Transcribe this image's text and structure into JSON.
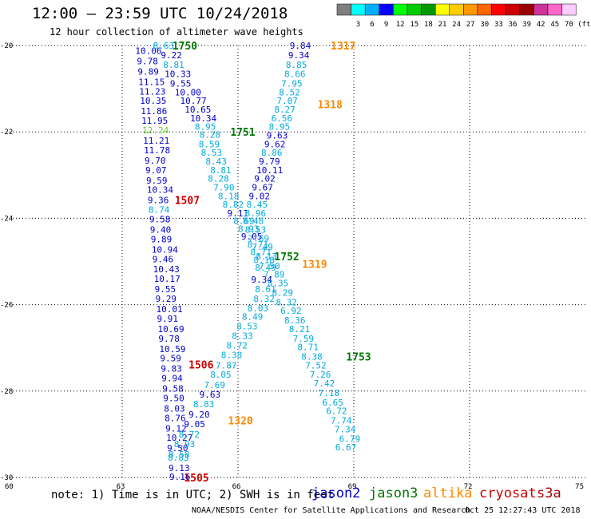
{
  "header": {
    "title": "12:00 — 23:59 UTC 10/24/2018",
    "subtitle": "12 hour collection of altimeter wave heights"
  },
  "color_scale": {
    "unit": "(ft)",
    "bins": [
      {
        "label": "",
        "color": "#7f7f7f"
      },
      {
        "label": "3",
        "color": "#00ffff"
      },
      {
        "label": "6",
        "color": "#00b0ff"
      },
      {
        "label": "9",
        "color": "#0000ff"
      },
      {
        "label": "12",
        "color": "#00ff00"
      },
      {
        "label": "15",
        "color": "#00cc00"
      },
      {
        "label": "18",
        "color": "#009900"
      },
      {
        "label": "21",
        "color": "#ffff00"
      },
      {
        "label": "24",
        "color": "#ffcc00"
      },
      {
        "label": "27",
        "color": "#ff9900"
      },
      {
        "label": "30",
        "color": "#ff6600"
      },
      {
        "label": "33",
        "color": "#ff0000"
      },
      {
        "label": "36",
        "color": "#cc0000"
      },
      {
        "label": "39",
        "color": "#990000"
      },
      {
        "label": "42",
        "color": "#cc3399"
      },
      {
        "label": "45",
        "color": "#ff66cc"
      },
      {
        "label": "70",
        "color": "#ffccff"
      }
    ]
  },
  "map": {
    "lon_ticks": [
      {
        "label": "60",
        "value": 60
      },
      {
        "label": "63",
        "value": 63
      },
      {
        "label": "66",
        "value": 66
      },
      {
        "label": "69",
        "value": 69
      },
      {
        "label": "72",
        "value": 72
      },
      {
        "label": "75",
        "value": 75
      }
    ],
    "lat_ticks": [
      {
        "label": "-20",
        "value": -20
      },
      {
        "label": "-22",
        "value": -22
      },
      {
        "label": "-24",
        "value": -24
      },
      {
        "label": "-26",
        "value": -26
      },
      {
        "label": "-28",
        "value": -28
      },
      {
        "label": "-30",
        "value": -30
      }
    ],
    "lon_range": [
      60,
      75
    ],
    "lat_range": [
      -20,
      -30
    ]
  },
  "satellites": {
    "jason2": {
      "label": "jason2",
      "color": "#0000cc"
    },
    "jason3": {
      "label": "jason3",
      "color": "#007700"
    },
    "altika": {
      "label": "altika",
      "color": "#ff8800"
    },
    "cryosat": {
      "label": "cryosat",
      "color": "#cc0000"
    },
    "s3a": {
      "label": "s3a",
      "color": "#aa0000"
    }
  },
  "observations": [
    {
      "t": "10.06",
      "lon": 63.34,
      "lat": -20.12,
      "c": "#0000cc"
    },
    {
      "t": "9.78",
      "lon": 63.38,
      "lat": -20.36,
      "c": "#0000cc"
    },
    {
      "t": "9.89",
      "lon": 63.4,
      "lat": -20.6,
      "c": "#0000cc"
    },
    {
      "t": "11.15",
      "lon": 63.42,
      "lat": -20.84,
      "c": "#0000cc"
    },
    {
      "t": "11.23",
      "lon": 63.44,
      "lat": -21.06,
      "c": "#0000cc"
    },
    {
      "t": "10.35",
      "lon": 63.46,
      "lat": -21.28,
      "c": "#0000cc"
    },
    {
      "t": "11.86",
      "lon": 63.48,
      "lat": -21.52,
      "c": "#0000cc"
    },
    {
      "t": "11.95",
      "lon": 63.5,
      "lat": -21.74,
      "c": "#0000cc"
    },
    {
      "t": "12.24",
      "lon": 63.52,
      "lat": -21.96,
      "c": "#66cc33"
    },
    {
      "t": "11.21",
      "lon": 63.54,
      "lat": -22.2,
      "c": "#0000cc"
    },
    {
      "t": "11.78",
      "lon": 63.56,
      "lat": -22.42,
      "c": "#0000cc"
    },
    {
      "t": "9.70",
      "lon": 63.58,
      "lat": -22.66,
      "c": "#0000cc"
    },
    {
      "t": "9.07",
      "lon": 63.6,
      "lat": -22.88,
      "c": "#0000cc"
    },
    {
      "t": "9.59",
      "lon": 63.62,
      "lat": -23.12,
      "c": "#0000cc"
    },
    {
      "t": "10.34",
      "lon": 63.64,
      "lat": -23.34,
      "c": "#0000cc"
    },
    {
      "t": "9.36",
      "lon": 63.66,
      "lat": -23.58,
      "c": "#0000cc"
    },
    {
      "t": "8.74",
      "lon": 63.68,
      "lat": -23.8,
      "c": "#00aadd"
    },
    {
      "t": "9.58",
      "lon": 63.7,
      "lat": -24.02,
      "c": "#0000cc"
    },
    {
      "t": "9.40",
      "lon": 63.72,
      "lat": -24.26,
      "c": "#0000cc"
    },
    {
      "t": "9.89",
      "lon": 63.74,
      "lat": -24.48,
      "c": "#0000cc"
    },
    {
      "t": "10.94",
      "lon": 63.76,
      "lat": -24.72,
      "c": "#0000cc"
    },
    {
      "t": "9.46",
      "lon": 63.78,
      "lat": -24.94,
      "c": "#0000cc"
    },
    {
      "t": "10.43",
      "lon": 63.8,
      "lat": -25.18,
      "c": "#0000cc"
    },
    {
      "t": "10.17",
      "lon": 63.82,
      "lat": -25.4,
      "c": "#0000cc"
    },
    {
      "t": "9.55",
      "lon": 63.84,
      "lat": -25.64,
      "c": "#0000cc"
    },
    {
      "t": "9.29",
      "lon": 63.86,
      "lat": -25.86,
      "c": "#0000cc"
    },
    {
      "t": "10.01",
      "lon": 63.88,
      "lat": -26.1,
      "c": "#0000cc"
    },
    {
      "t": "9.91",
      "lon": 63.9,
      "lat": -26.32,
      "c": "#0000cc"
    },
    {
      "t": "10.69",
      "lon": 63.92,
      "lat": -26.56,
      "c": "#0000cc"
    },
    {
      "t": "9.78",
      "lon": 63.94,
      "lat": -26.78,
      "c": "#0000cc"
    },
    {
      "t": "10.59",
      "lon": 63.96,
      "lat": -27.02,
      "c": "#0000cc"
    },
    {
      "t": "9.59",
      "lon": 63.98,
      "lat": -27.24,
      "c": "#0000cc"
    },
    {
      "t": "9.83",
      "lon": 64.0,
      "lat": -27.48,
      "c": "#0000cc"
    },
    {
      "t": "9.94",
      "lon": 64.02,
      "lat": -27.7,
      "c": "#0000cc"
    },
    {
      "t": "9.58",
      "lon": 64.04,
      "lat": -27.94,
      "c": "#0000cc"
    },
    {
      "t": "9.50",
      "lon": 64.06,
      "lat": -28.16,
      "c": "#0000cc"
    },
    {
      "t": "8.03",
      "lon": 64.08,
      "lat": -28.4,
      "c": "#0000cc"
    },
    {
      "t": "8.76",
      "lon": 64.1,
      "lat": -28.62,
      "c": "#0000cc"
    },
    {
      "t": "9.12",
      "lon": 64.12,
      "lat": -28.86,
      "c": "#0000cc"
    },
    {
      "t": "10.27",
      "lon": 64.14,
      "lat": -29.08,
      "c": "#0000cc"
    },
    {
      "t": "9.50",
      "lon": 64.16,
      "lat": -29.32,
      "c": "#0000cc"
    },
    {
      "t": "8.83",
      "lon": 64.18,
      "lat": -29.54,
      "c": "#00aadd"
    },
    {
      "t": "9.13",
      "lon": 64.2,
      "lat": -29.78,
      "c": "#0000cc"
    },
    {
      "t": "9.16",
      "lon": 64.22,
      "lat": -29.98,
      "c": "#0000cc"
    },
    {
      "t": "8.63",
      "lon": 63.8,
      "lat": -20.0,
      "c": "#00aadd"
    },
    {
      "t": "9.22",
      "lon": 64.0,
      "lat": -20.22,
      "c": "#0000cc"
    },
    {
      "t": "8.81",
      "lon": 64.06,
      "lat": -20.44,
      "c": "#00aadd"
    },
    {
      "t": "10.33",
      "lon": 64.1,
      "lat": -20.66,
      "c": "#0000cc"
    },
    {
      "t": "9.55",
      "lon": 64.24,
      "lat": -20.88,
      "c": "#0000cc"
    },
    {
      "t": "10.00",
      "lon": 64.36,
      "lat": -21.08,
      "c": "#0000cc"
    },
    {
      "t": "10.77",
      "lon": 64.5,
      "lat": -21.28,
      "c": "#0000cc"
    },
    {
      "t": "10.65",
      "lon": 64.62,
      "lat": -21.48,
      "c": "#0000cc"
    },
    {
      "t": "10.34",
      "lon": 64.76,
      "lat": -21.68,
      "c": "#0000cc"
    },
    {
      "t": "8.95",
      "lon": 64.88,
      "lat": -21.88,
      "c": "#00aadd"
    },
    {
      "t": "8.28",
      "lon": 65.0,
      "lat": -22.06,
      "c": "#00aadd"
    },
    {
      "t": "8.59",
      "lon": 64.98,
      "lat": -22.28,
      "c": "#00aadd"
    },
    {
      "t": "8.53",
      "lon": 65.04,
      "lat": -22.48,
      "c": "#00aadd"
    },
    {
      "t": "8.43",
      "lon": 65.16,
      "lat": -22.68,
      "c": "#00aadd"
    },
    {
      "t": "8.81",
      "lon": 65.28,
      "lat": -22.88,
      "c": "#00aadd"
    },
    {
      "t": "8.28",
      "lon": 65.22,
      "lat": -23.08,
      "c": "#00aadd"
    },
    {
      "t": "7.90",
      "lon": 65.36,
      "lat": -23.28,
      "c": "#00aadd"
    },
    {
      "t": "8.18",
      "lon": 65.48,
      "lat": -23.48,
      "c": "#00aadd"
    },
    {
      "t": "8.82",
      "lon": 65.6,
      "lat": -23.68,
      "c": "#00aadd"
    },
    {
      "t": "9.11",
      "lon": 65.72,
      "lat": -23.88,
      "c": "#0000cc"
    },
    {
      "t": "8.69",
      "lon": 65.88,
      "lat": -24.06,
      "c": "#00aadd"
    },
    {
      "t": "8.93",
      "lon": 66.0,
      "lat": -24.24,
      "c": "#00aadd"
    },
    {
      "t": "9.05",
      "lon": 66.08,
      "lat": -24.42,
      "c": "#0000cc"
    },
    {
      "t": "8.71",
      "lon": 66.24,
      "lat": -24.6,
      "c": "#00aadd"
    },
    {
      "t": "8.71",
      "lon": 66.32,
      "lat": -24.78,
      "c": "#00aadd"
    },
    {
      "t": "8.18",
      "lon": 66.4,
      "lat": -24.96,
      "c": "#00aadd"
    },
    {
      "t": "8.49",
      "lon": 66.44,
      "lat": -25.14,
      "c": "#00aadd"
    },
    {
      "t": "9.34",
      "lon": 66.34,
      "lat": -25.42,
      "c": "#0000cc"
    },
    {
      "t": "8.61",
      "lon": 66.44,
      "lat": -25.64,
      "c": "#00aadd"
    },
    {
      "t": "8.32",
      "lon": 66.4,
      "lat": -25.86,
      "c": "#00aadd"
    },
    {
      "t": "8.03",
      "lon": 66.24,
      "lat": -26.08,
      "c": "#00aadd"
    },
    {
      "t": "8.49",
      "lon": 66.1,
      "lat": -26.28,
      "c": "#00aadd"
    },
    {
      "t": "8.53",
      "lon": 65.96,
      "lat": -26.5,
      "c": "#00aadd"
    },
    {
      "t": "8.33",
      "lon": 65.84,
      "lat": -26.72,
      "c": "#00aadd"
    },
    {
      "t": "8.72",
      "lon": 65.7,
      "lat": -26.94,
      "c": "#00aadd"
    },
    {
      "t": "8.38",
      "lon": 65.56,
      "lat": -27.16,
      "c": "#00aadd"
    },
    {
      "t": "7.87",
      "lon": 65.42,
      "lat": -27.4,
      "c": "#00aadd"
    },
    {
      "t": "8.05",
      "lon": 65.28,
      "lat": -27.62,
      "c": "#00aadd"
    },
    {
      "t": "7.69",
      "lon": 65.12,
      "lat": -27.86,
      "c": "#00aadd"
    },
    {
      "t": "9.63",
      "lon": 65.0,
      "lat": -28.08,
      "c": "#0000cc"
    },
    {
      "t": "8.83",
      "lon": 64.84,
      "lat": -28.3,
      "c": "#00aadd"
    },
    {
      "t": "9.20",
      "lon": 64.72,
      "lat": -28.54,
      "c": "#0000cc"
    },
    {
      "t": "9.05",
      "lon": 64.6,
      "lat": -28.76,
      "c": "#0000cc"
    },
    {
      "t": "8.72",
      "lon": 64.46,
      "lat": -29.0,
      "c": "#00aadd"
    },
    {
      "t": "8.93",
      "lon": 64.34,
      "lat": -29.22,
      "c": "#00aadd"
    },
    {
      "t": "8.58",
      "lon": 64.2,
      "lat": -29.46,
      "c": "#00aadd"
    },
    {
      "t": "9.84",
      "lon": 67.34,
      "lat": -20.0,
      "c": "#0000cc"
    },
    {
      "t": "9.34",
      "lon": 67.3,
      "lat": -20.22,
      "c": "#0000cc"
    },
    {
      "t": "8.85",
      "lon": 67.24,
      "lat": -20.44,
      "c": "#00aadd"
    },
    {
      "t": "8.66",
      "lon": 67.2,
      "lat": -20.66,
      "c": "#00aadd"
    },
    {
      "t": "7.95",
      "lon": 67.12,
      "lat": -20.88,
      "c": "#00aadd"
    },
    {
      "t": "8.52",
      "lon": 67.06,
      "lat": -21.08,
      "c": "#00aadd"
    },
    {
      "t": "7.07",
      "lon": 67.0,
      "lat": -21.28,
      "c": "#00aadd"
    },
    {
      "t": "8.27",
      "lon": 66.94,
      "lat": -21.48,
      "c": "#00aadd"
    },
    {
      "t": "6.56",
      "lon": 66.86,
      "lat": -21.68,
      "c": "#00aadd"
    },
    {
      "t": "8.95",
      "lon": 66.8,
      "lat": -21.88,
      "c": "#00aadd"
    },
    {
      "t": "9.63",
      "lon": 66.74,
      "lat": -22.08,
      "c": "#0000cc"
    },
    {
      "t": "9.62",
      "lon": 66.68,
      "lat": -22.28,
      "c": "#0000cc"
    },
    {
      "t": "8.86",
      "lon": 66.6,
      "lat": -22.48,
      "c": "#00aadd"
    },
    {
      "t": "9.79",
      "lon": 66.54,
      "lat": -22.68,
      "c": "#0000cc"
    },
    {
      "t": "10.11",
      "lon": 66.48,
      "lat": -22.88,
      "c": "#0000cc"
    },
    {
      "t": "9.02",
      "lon": 66.42,
      "lat": -23.08,
      "c": "#0000cc"
    },
    {
      "t": "9.67",
      "lon": 66.36,
      "lat": -23.28,
      "c": "#0000cc"
    },
    {
      "t": "9.02",
      "lon": 66.28,
      "lat": -23.48,
      "c": "#0000cc"
    },
    {
      "t": "8.45",
      "lon": 66.22,
      "lat": -23.68,
      "c": "#00aadd"
    },
    {
      "t": "8.96",
      "lon": 66.18,
      "lat": -23.88,
      "c": "#00aadd"
    },
    {
      "t": "8.48",
      "lon": 66.12,
      "lat": -24.06,
      "c": "#00aadd"
    },
    {
      "t": "8.53",
      "lon": 66.18,
      "lat": -24.26,
      "c": "#00aadd"
    },
    {
      "t": "7.69",
      "lon": 66.26,
      "lat": -24.46,
      "c": "#00aadd"
    },
    {
      "t": "7.49",
      "lon": 66.36,
      "lat": -24.66,
      "c": "#00aadd"
    },
    {
      "t": "8.13",
      "lon": 66.46,
      "lat": -24.88,
      "c": "#00aadd"
    },
    {
      "t": "7.50",
      "lon": 66.54,
      "lat": -25.1,
      "c": "#00aadd"
    },
    {
      "t": "7.89",
      "lon": 66.66,
      "lat": -25.3,
      "c": "#00aadd"
    },
    {
      "t": "8.35",
      "lon": 66.76,
      "lat": -25.5,
      "c": "#00aadd"
    },
    {
      "t": "8.29",
      "lon": 66.88,
      "lat": -25.72,
      "c": "#00aadd"
    },
    {
      "t": "8.32",
      "lon": 66.98,
      "lat": -25.94,
      "c": "#00aadd"
    },
    {
      "t": "6.92",
      "lon": 67.1,
      "lat": -26.14,
      "c": "#00aadd"
    },
    {
      "t": "8.36",
      "lon": 67.2,
      "lat": -26.36,
      "c": "#00aadd"
    },
    {
      "t": "8.21",
      "lon": 67.32,
      "lat": -26.56,
      "c": "#00aadd"
    },
    {
      "t": "7.59",
      "lon": 67.42,
      "lat": -26.78,
      "c": "#00aadd"
    },
    {
      "t": "8.71",
      "lon": 67.54,
      "lat": -26.98,
      "c": "#00aadd"
    },
    {
      "t": "8.38",
      "lon": 67.64,
      "lat": -27.2,
      "c": "#00aadd"
    },
    {
      "t": "7.52",
      "lon": 67.74,
      "lat": -27.4,
      "c": "#00aadd"
    },
    {
      "t": "7.26",
      "lon": 67.86,
      "lat": -27.62,
      "c": "#00aadd"
    },
    {
      "t": "7.42",
      "lon": 67.96,
      "lat": -27.82,
      "c": "#00aadd"
    },
    {
      "t": "7.18",
      "lon": 68.08,
      "lat": -28.04,
      "c": "#00aadd"
    },
    {
      "t": "6.65",
      "lon": 68.18,
      "lat": -28.26,
      "c": "#00aadd"
    },
    {
      "t": "6.72",
      "lon": 68.28,
      "lat": -28.46,
      "c": "#00aadd"
    },
    {
      "t": "7.74",
      "lon": 68.4,
      "lat": -28.68,
      "c": "#00aadd"
    },
    {
      "t": "7.34",
      "lon": 68.5,
      "lat": -28.88,
      "c": "#00aadd"
    },
    {
      "t": "6.79",
      "lon": 68.62,
      "lat": -29.1,
      "c": "#00aadd"
    },
    {
      "t": "6.67",
      "lon": 68.52,
      "lat": -29.3,
      "c": "#00aadd"
    }
  ],
  "track_labels": [
    {
      "t": "1750",
      "lon": 64.3,
      "lat": -20.0,
      "c": "#007700"
    },
    {
      "t": "1751",
      "lon": 65.8,
      "lat": -22.0,
      "c": "#007700"
    },
    {
      "t": "1752",
      "lon": 66.94,
      "lat": -24.88,
      "c": "#007700"
    },
    {
      "t": "1753",
      "lon": 68.8,
      "lat": -27.2,
      "c": "#007700"
    },
    {
      "t": "1317",
      "lon": 68.4,
      "lat": -20.0,
      "c": "#ff8800"
    },
    {
      "t": "1318",
      "lon": 68.06,
      "lat": -21.36,
      "c": "#ff8800"
    },
    {
      "t": "1319",
      "lon": 67.66,
      "lat": -25.06,
      "c": "#ff8800"
    },
    {
      "t": "1320",
      "lon": 65.74,
      "lat": -28.68,
      "c": "#ff8800"
    },
    {
      "t": "1507",
      "lon": 64.36,
      "lat": -23.58,
      "c": "#cc0000"
    },
    {
      "t": "1506",
      "lon": 64.72,
      "lat": -27.38,
      "c": "#cc0000"
    },
    {
      "t": "1505",
      "lon": 64.6,
      "lat": -30.0,
      "c": "#cc0000"
    }
  ],
  "footer": {
    "note": "note: 1) Time is in UTC; 2) SWH is in feet",
    "credit": "NOAA/NESDIS Center for Satellite Applications and Research",
    "timestamp": "Oct 25 12:27:43 UTC 2018"
  }
}
